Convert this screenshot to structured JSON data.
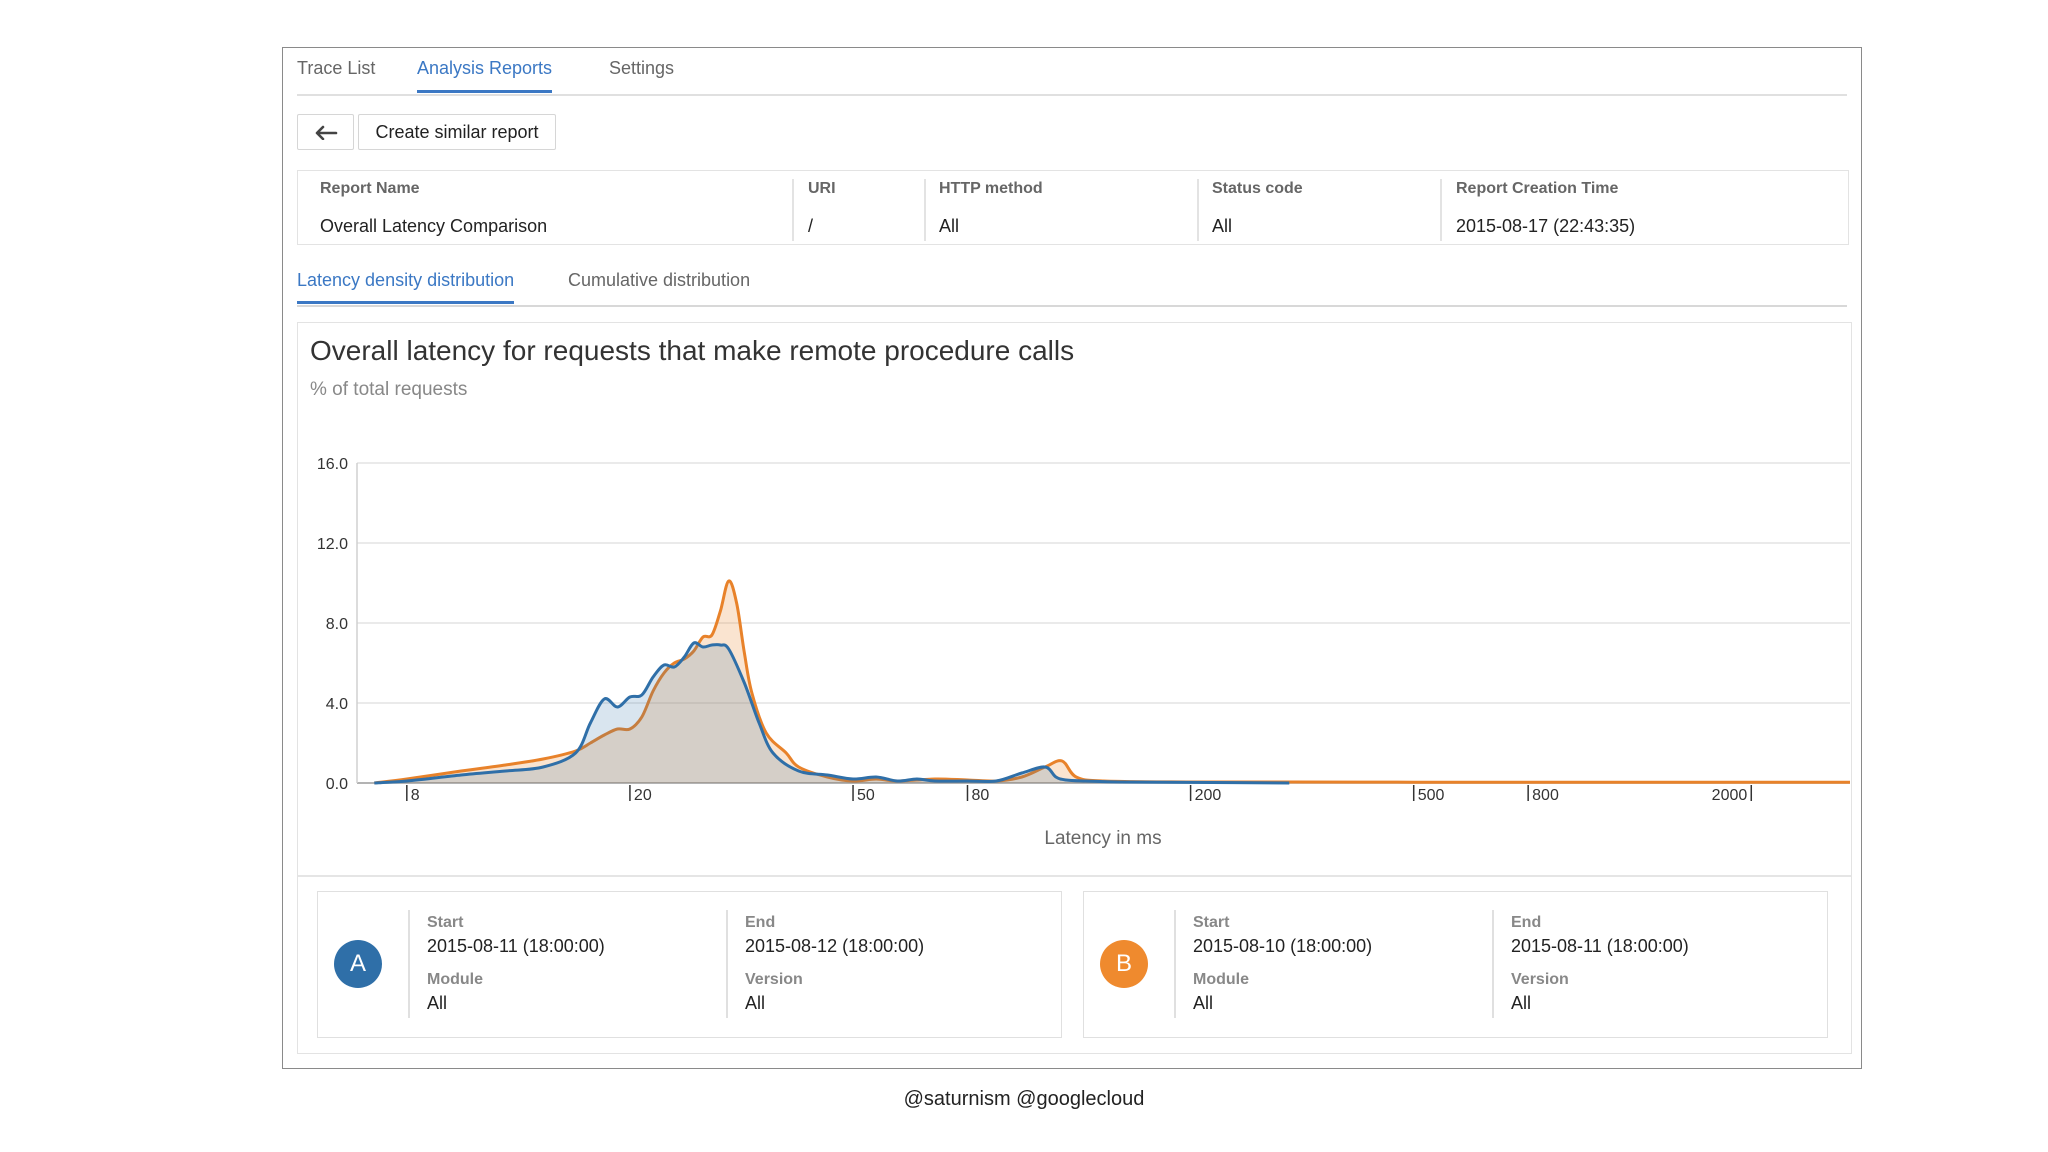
{
  "tabs": [
    {
      "label": "Trace List",
      "active": false
    },
    {
      "label": "Analysis Reports",
      "active": true
    },
    {
      "label": "Settings",
      "active": false
    }
  ],
  "toolbar": {
    "back_icon": "back-arrow-icon",
    "create_similar_label": "Create similar report"
  },
  "report": {
    "columns": [
      {
        "label": "Report Name",
        "value": "Overall Latency Comparison"
      },
      {
        "label": "URI",
        "value": "/"
      },
      {
        "label": "HTTP method",
        "value": "All"
      },
      {
        "label": "Status code",
        "value": "All"
      },
      {
        "label": "Report Creation Time",
        "value": "2015-08-17 (22:43:35)"
      }
    ]
  },
  "subtabs": [
    {
      "label": "Latency density distribution",
      "active": true
    },
    {
      "label": "Cumulative distribution",
      "active": false
    }
  ],
  "chart_data": {
    "type": "area",
    "title": "Overall latency for requests that make remote procedure calls",
    "subtitle": "% of total requests",
    "xlabel": "Latency in ms",
    "x_scale": "log",
    "ylim": [
      0,
      16
    ],
    "yticks": [
      "0.0",
      "4.0",
      "8.0",
      "12.0",
      "16.0"
    ],
    "xticks": [
      "8",
      "20",
      "50",
      "80",
      "200",
      "500",
      "800",
      "2000"
    ],
    "grid": true,
    "series": [
      {
        "name": "A",
        "color": "#2f6fa8",
        "x": [
          7,
          8,
          10,
          12,
          14,
          16,
          17,
          18,
          19,
          20,
          21,
          22,
          23,
          24,
          25,
          26,
          27,
          28,
          29,
          30,
          32,
          34,
          36,
          40,
          45,
          50,
          55,
          60,
          65,
          70,
          80,
          90,
          100,
          110,
          115,
          120,
          130,
          150,
          200,
          300
        ],
        "y": [
          0.0,
          0.1,
          0.4,
          0.6,
          0.8,
          1.5,
          3.0,
          4.2,
          3.8,
          4.3,
          4.4,
          5.3,
          5.9,
          5.8,
          6.3,
          7.0,
          6.8,
          6.9,
          6.9,
          6.7,
          5.0,
          3.0,
          1.5,
          0.6,
          0.4,
          0.2,
          0.3,
          0.1,
          0.2,
          0.1,
          0.1,
          0.1,
          0.5,
          0.8,
          0.3,
          0.15,
          0.1,
          0.05,
          0.03,
          0.0
        ]
      },
      {
        "name": "B",
        "color": "#e8822a",
        "x": [
          7,
          8,
          10,
          12,
          14,
          16,
          17,
          18,
          19,
          20,
          21,
          22,
          23,
          24,
          25,
          26,
          27,
          28,
          29,
          30,
          31,
          32,
          33,
          35,
          38,
          40,
          45,
          50,
          55,
          60,
          70,
          80,
          90,
          100,
          110,
          118,
          125,
          140,
          200,
          300,
          500,
          800,
          2000,
          3000
        ],
        "y": [
          0.0,
          0.2,
          0.6,
          0.9,
          1.2,
          1.6,
          2.0,
          2.4,
          2.7,
          2.7,
          3.3,
          4.6,
          5.5,
          6.0,
          6.2,
          6.6,
          7.3,
          7.4,
          8.6,
          10.1,
          9.0,
          6.5,
          4.5,
          2.5,
          1.5,
          0.8,
          0.3,
          0.1,
          0.2,
          0.1,
          0.2,
          0.15,
          0.1,
          0.3,
          0.8,
          1.1,
          0.3,
          0.1,
          0.05,
          0.05,
          0.04,
          0.04,
          0.04,
          0.04
        ]
      }
    ]
  },
  "legend": [
    {
      "badge": "A",
      "badge_color": "#2f6fa8",
      "start_label": "Start",
      "start": "2015-08-11 (18:00:00)",
      "end_label": "End",
      "end": "2015-08-12 (18:00:00)",
      "module_label": "Module",
      "module": "All",
      "version_label": "Version",
      "version": "All"
    },
    {
      "badge": "B",
      "badge_color": "#ef8a2e",
      "start_label": "Start",
      "start": "2015-08-10 (18:00:00)",
      "end_label": "End",
      "end": "2015-08-11 (18:00:00)",
      "module_label": "Module",
      "module": "All",
      "version_label": "Version",
      "version": "All"
    }
  ],
  "footer": "@saturnism @googlecloud"
}
